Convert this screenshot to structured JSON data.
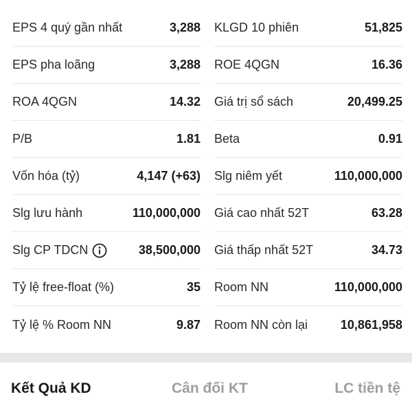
{
  "left_stats": [
    {
      "label": "EPS 4 quý gần nhất",
      "value": "3,288"
    },
    {
      "label": "EPS pha loãng",
      "value": "3,288"
    },
    {
      "label": "ROA 4QGN",
      "value": "14.32"
    },
    {
      "label": "P/B",
      "value": "1.81"
    },
    {
      "label": "Vốn hóa (tỷ)",
      "value": "4,147 (+63)"
    },
    {
      "label": "Slg lưu hành",
      "value": "110,000,000"
    },
    {
      "label": "Slg CP TDCN",
      "value": "38,500,000"
    },
    {
      "label": "Tỷ lệ free-float (%)",
      "value": "35"
    },
    {
      "label": "Tỷ lệ % Room NN",
      "value": "9.87"
    }
  ],
  "right_stats": [
    {
      "label": "KLGD 10 phiên",
      "value": "51,825"
    },
    {
      "label": "ROE 4QGN",
      "value": "16.36"
    },
    {
      "label": "Giá trị sổ sách",
      "value": "20,499.25"
    },
    {
      "label": "Beta",
      "value": "0.91"
    },
    {
      "label": "Slg niêm yết",
      "value": "110,000,000"
    },
    {
      "label": "Giá cao nhất 52T",
      "value": "63.28"
    },
    {
      "label": "Giá thấp nhất 52T",
      "value": "34.73"
    },
    {
      "label": "Room NN",
      "value": "110,000,000"
    },
    {
      "label": "Room NN còn lại",
      "value": "10,861,958"
    }
  ],
  "info_icon": "info-circle-icon",
  "tabs": [
    {
      "label": "Kết Quả KD",
      "active": true
    },
    {
      "label": "Cân đối KT",
      "active": false
    },
    {
      "label": "LC tiền tệ",
      "active": false
    }
  ],
  "colors": {
    "active_tab": "#1a1a1a",
    "inactive_tab": "#9e9e9e",
    "separator": "#e8e8e8",
    "divider": "#e7e7e7"
  }
}
